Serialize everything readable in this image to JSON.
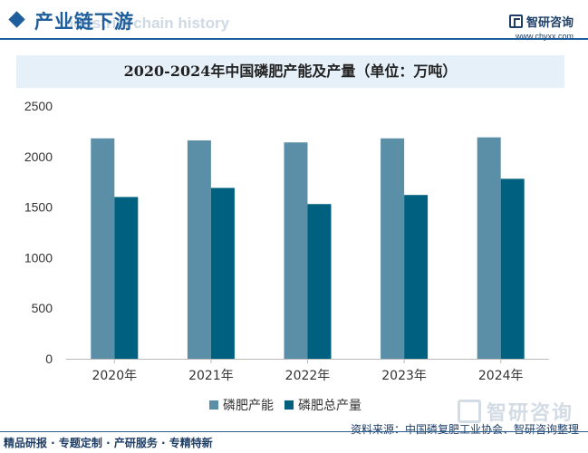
{
  "header": {
    "title": "产业链下游",
    "ghost": "Industrial chain history",
    "brand": "智研咨询",
    "site": "www.chyxx.com"
  },
  "chart_title": "2020-2024年中国磷肥产能及产量（单位：万吨）",
  "chart_data": {
    "type": "bar",
    "title": "2020-2024年中国磷肥产能及产量（单位：万吨）",
    "categories": [
      "2020年",
      "2021年",
      "2022年",
      "2023年",
      "2024年"
    ],
    "series": [
      {
        "name": "磷肥产能",
        "values": [
          2180,
          2160,
          2140,
          2180,
          2190
        ],
        "color": "#5b8fa8"
      },
      {
        "name": "磷肥总产量",
        "values": [
          1600,
          1690,
          1530,
          1620,
          1780
        ],
        "color": "#00607f"
      }
    ],
    "ylim": [
      0,
      2500
    ],
    "yticks": [
      0,
      500,
      1000,
      1500,
      2000,
      2500
    ],
    "grid": false,
    "legend": "bottom"
  },
  "footer": {
    "left": "精品研报 · 专题定制 · 产研服务 · 专精特新",
    "source": "资料来源：中国磷复肥工业协会、智研咨询整理",
    "watermark": "智研咨询"
  }
}
